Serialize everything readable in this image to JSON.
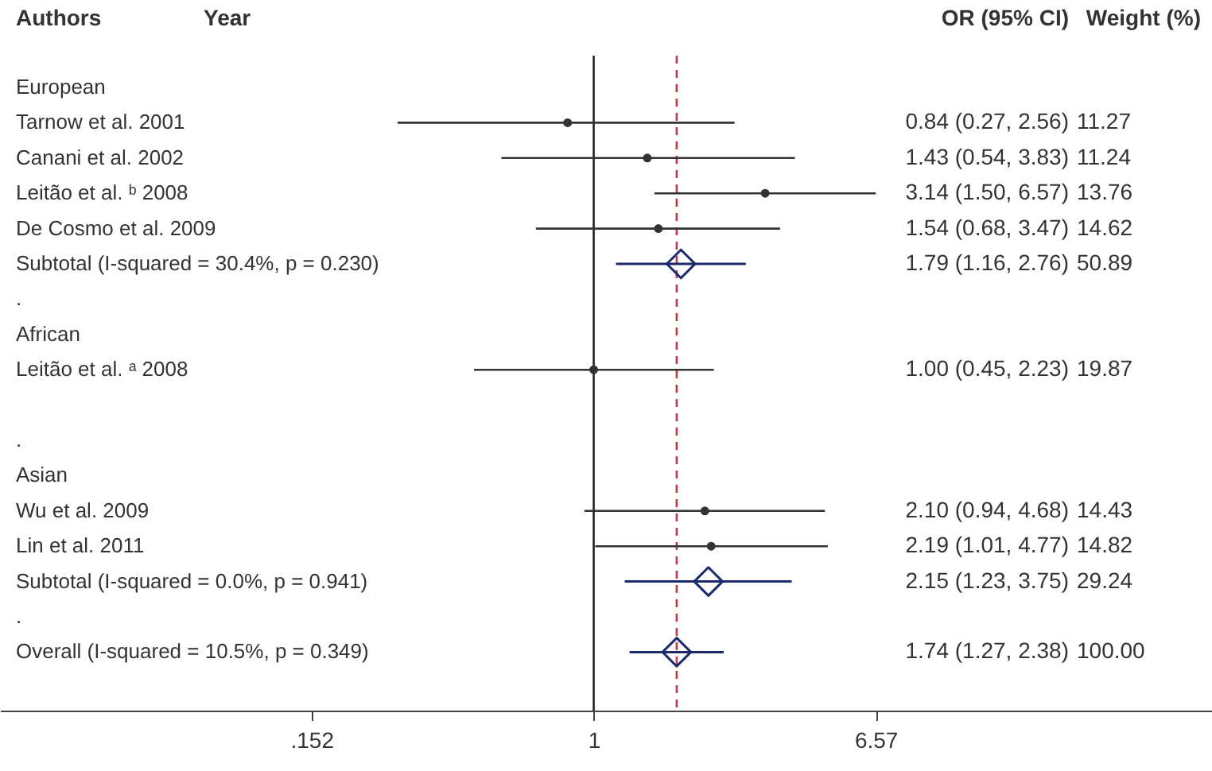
{
  "chart_data": {
    "type": "scatter",
    "orientation": "horizontal",
    "log": "x",
    "grid": false,
    "categories": [
      "European",
      "Tarnow et al. 2001",
      "Canani et al. 2002",
      "Leitão et al. ᵇ 2008",
      "De Cosmo et al. 2009",
      "Subtotal  (I-squared = 30.4%, p = 0.230)",
      ".",
      "African",
      "Leitão et al. ᵃ 2008",
      null,
      ".",
      "Asian",
      "Wu et al. 2009",
      "Lin et al. 2011",
      "Subtotal  (I-squared = 0.0%, p = 0.941)",
      ".",
      "Overall  (I-squared = 10.5%, p = 0.349)"
    ],
    "series": [
      {
        "type": "scatter",
        "marker": "circle",
        "color": "#333333",
        "values": [
          null,
          0.84,
          1.43,
          3.14,
          1.54,
          null,
          null,
          null,
          1.0,
          null,
          null,
          null,
          2.1,
          2.19,
          null,
          null,
          null
        ],
        "errors": [
          null,
          [
            0.27,
            2.56
          ],
          [
            0.54,
            3.83
          ],
          [
            1.5,
            6.57
          ],
          [
            0.68,
            3.47
          ],
          null,
          null,
          null,
          [
            0.45,
            2.23
          ],
          null,
          null,
          null,
          [
            0.94,
            4.68
          ],
          [
            1.01,
            4.77
          ],
          null,
          null,
          null
        ],
        "value_labels": [
          null,
          "0.84 (0.27, 2.56) 11.27",
          "1.43 (0.54, 3.83) 11.24",
          "3.14 (1.50, 6.57) 13.76",
          "1.54 (0.68, 3.47) 14.62",
          null,
          null,
          null,
          "1.00 (0.45, 2.23) 19.87",
          null,
          null,
          null,
          "2.10 (0.94, 4.68) 14.43",
          "2.19 (1.01, 4.77) 14.82",
          null,
          null,
          null
        ]
      },
      {
        "type": "scatter",
        "marker": "diamond",
        "color": "#1a2a6c",
        "values": [
          null,
          null,
          null,
          null,
          null,
          1.79,
          null,
          null,
          null,
          null,
          null,
          null,
          null,
          null,
          2.15,
          null,
          1.74
        ],
        "errors": [
          null,
          null,
          null,
          null,
          null,
          [
            1.16,
            2.76
          ],
          null,
          null,
          null,
          null,
          null,
          null,
          null,
          null,
          [
            1.23,
            3.75
          ],
          null,
          [
            1.27,
            2.38
          ]
        ],
        "value_labels": [
          null,
          null,
          null,
          null,
          null,
          "1.79 (1.16, 2.76) 50.89",
          null,
          null,
          null,
          null,
          null,
          null,
          null,
          null,
          "2.15 (1.23, 3.75) 29.24",
          null,
          "1.74 (1.27, 2.38) 100.00"
        ]
      }
    ],
    "xlim": [
      0.019,
      62
    ],
    "xticks": [
      {
        "value": 0.152,
        "label": ".152"
      },
      1,
      6.57
    ],
    "ref_lines": [
      {
        "axis": "x",
        "value": 1,
        "color": "#222222",
        "line_style": "solid"
      },
      {
        "axis": "x",
        "value": 1.74,
        "color": "#c0394b",
        "line_style": "dashed"
      }
    ],
    "annotations": [
      "Authors",
      "Year",
      "OR (95% CI)",
      "Weight (%)"
    ]
  }
}
